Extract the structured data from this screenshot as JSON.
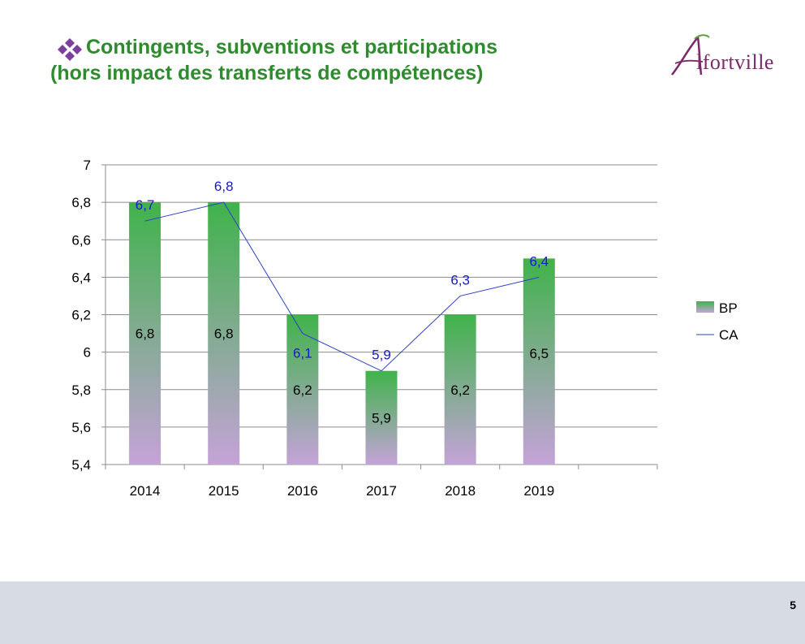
{
  "title": {
    "line1": "Contingents, subventions et participations",
    "line2": "(hors impact des transferts de compétences)"
  },
  "logo": {
    "text": "lfortville",
    "initial": "A"
  },
  "page_number": "5",
  "colors": {
    "title": "#2e8b2e",
    "bullet": "#7b3fa0",
    "bar_top": "#3fb34a",
    "bar_bottom": "#c5a3d8",
    "line": "#2a3fc8",
    "line_label": "#1a1acc",
    "footer": "#d6dbe4"
  },
  "chart_data": {
    "type": "bar",
    "categories": [
      "2014",
      "2015",
      "2016",
      "2017",
      "2018",
      "2019",
      ""
    ],
    "series": [
      {
        "name": "BP",
        "type": "bar",
        "values": [
          6.8,
          6.8,
          6.2,
          5.9,
          6.2,
          6.5,
          null
        ],
        "labels": [
          "6,8",
          "6,8",
          "6,2",
          "5,9",
          "6,2",
          "6,5",
          ""
        ]
      },
      {
        "name": "CA",
        "type": "line",
        "values": [
          6.7,
          6.8,
          6.1,
          5.9,
          6.3,
          6.4,
          null
        ],
        "labels": [
          "6,7",
          "6,8",
          "6,1",
          "5,9",
          "6,3",
          "6,4",
          ""
        ]
      }
    ],
    "ylim": [
      5.4,
      7
    ],
    "yticks": [
      5.4,
      5.6,
      5.8,
      6,
      6.2,
      6.4,
      6.6,
      6.8,
      7
    ],
    "ytick_labels": [
      "5,4",
      "5,6",
      "5,8",
      "6",
      "6,2",
      "6,4",
      "6,6",
      "6,8",
      "7"
    ],
    "grid": true,
    "legend": "right",
    "title": "",
    "xlabel": "",
    "ylabel": ""
  }
}
